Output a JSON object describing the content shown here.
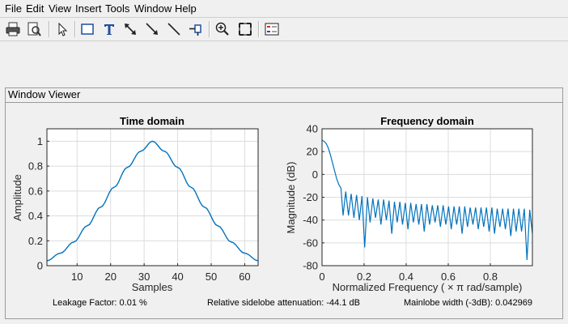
{
  "menu": [
    "File",
    "Edit",
    "View",
    "Insert",
    "Tools",
    "Window",
    "Help"
  ],
  "toolbar": {
    "buttons": [
      "print-icon",
      "print-preview-icon",
      "select-arrow-icon",
      "rectangle-icon",
      "text-icon",
      "double-arrow-icon",
      "arrow-icon",
      "line-icon",
      "pin-icon",
      "zoom-in-icon",
      "fit-view-icon",
      "legend-icon"
    ]
  },
  "panel": {
    "title": "Window Viewer"
  },
  "chart_data": [
    {
      "type": "line",
      "title": "Time domain",
      "xlabel": "Samples",
      "ylabel": "Amplitude",
      "xlim": [
        1,
        64
      ],
      "ylim": [
        0,
        1.1
      ],
      "xticks": [
        "10",
        "20",
        "30",
        "40",
        "50",
        "60"
      ],
      "yticks": [
        "0",
        "0.2",
        "0.4",
        "0.6",
        "0.8",
        "1"
      ],
      "grid": true,
      "series": [
        {
          "color": "#0072bd",
          "x": [
            1,
            5,
            9,
            13,
            17,
            21,
            25,
            29,
            32.5,
            36,
            40,
            44,
            48,
            52,
            56,
            60,
            64
          ],
          "y": [
            0.04,
            0.1,
            0.19,
            0.32,
            0.47,
            0.63,
            0.79,
            0.92,
            1.0,
            0.92,
            0.79,
            0.63,
            0.47,
            0.32,
            0.19,
            0.1,
            0.04
          ]
        }
      ]
    },
    {
      "type": "line",
      "title": "Frequency domain",
      "xlabel": "Normalized Frequency  ( × π rad/sample)",
      "ylabel": "Magnitude (dB)",
      "xlim": [
        0,
        1
      ],
      "ylim": [
        -80,
        40
      ],
      "xticks": [
        "0",
        "0.2",
        "0.4",
        "0.6",
        "0.8"
      ],
      "yticks": [
        "-80",
        "-60",
        "-40",
        "-20",
        "0",
        "20",
        "40"
      ],
      "grid": true,
      "series": [
        {
          "color": "#0072bd",
          "x": [
            0,
            0.01,
            0.02,
            0.03,
            0.04,
            0.05,
            0.06,
            0.07,
            0.08,
            0.09,
            0.1
          ],
          "y": [
            30,
            29,
            27,
            23,
            17,
            10,
            3,
            -4,
            -9,
            -12,
            -36
          ]
        }
      ],
      "sidelobe_peaks_db": [
        -15,
        -17,
        -18,
        -19,
        -20,
        -21,
        -22,
        -22,
        -23,
        -24,
        -24,
        -25,
        -25,
        -26,
        -26,
        -26,
        -27,
        -27,
        -27,
        -28,
        -28,
        -28,
        -28,
        -29,
        -29,
        -29,
        -29,
        -29,
        -30,
        -30,
        -30,
        -30,
        -30,
        -30,
        -31
      ],
      "null_depths_db": [
        -36,
        -38,
        -40,
        -64,
        -42,
        -38,
        -44,
        -40,
        -52,
        -42,
        -44,
        -48,
        -42,
        -44,
        -50,
        -44,
        -42,
        -46,
        -44,
        -48,
        -44,
        -52,
        -46,
        -44,
        -48,
        -46,
        -50,
        -52,
        -46,
        -48,
        -54,
        -50,
        -50,
        -75,
        -52
      ]
    }
  ],
  "status": {
    "leakage": "Leakage Factor: 0.01 %",
    "sidelobe": "Relative sidelobe attenuation: -44.1 dB",
    "mainlobe": "Mainlobe width (-3dB): 0.042969"
  }
}
